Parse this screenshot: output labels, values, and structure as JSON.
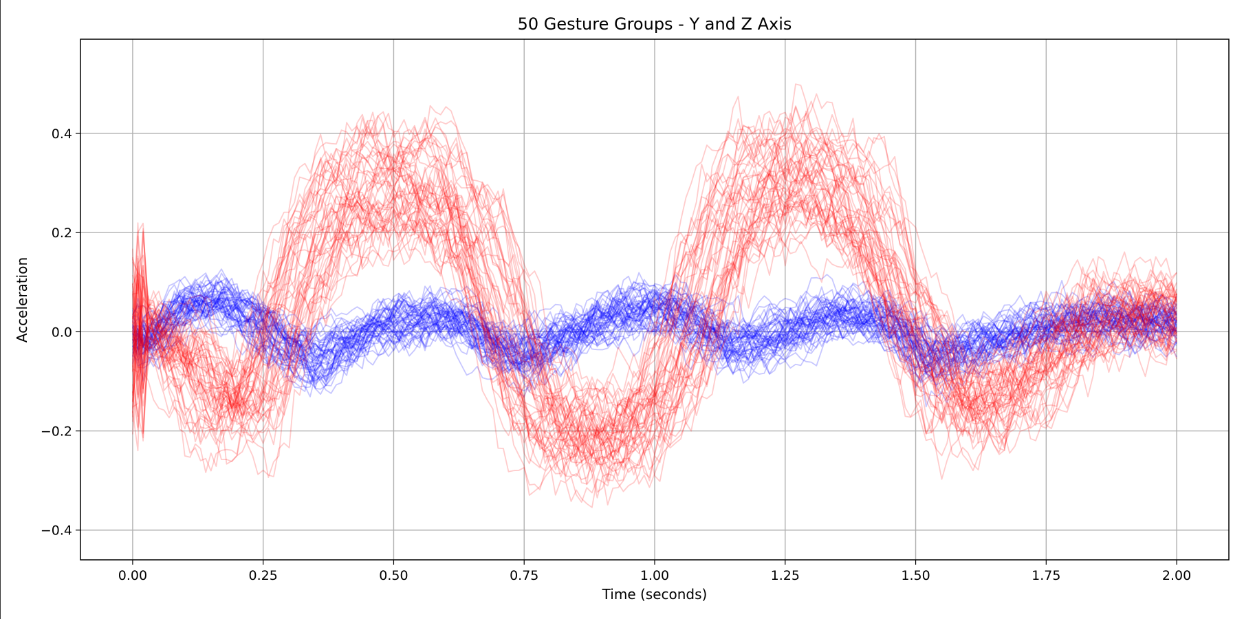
{
  "chart_data": {
    "type": "line",
    "title": "50 Gesture Groups - Y and Z Axis",
    "xlabel": "Time (seconds)",
    "ylabel": "Acceleration",
    "xlim": [
      -0.1,
      2.1
    ],
    "ylim": [
      -0.46,
      0.59
    ],
    "x_ticks": [
      0.0,
      0.25,
      0.5,
      0.75,
      1.0,
      1.25,
      1.5,
      1.75,
      2.0
    ],
    "x_tick_labels": [
      "0.00",
      "0.25",
      "0.50",
      "0.75",
      "1.00",
      "1.25",
      "1.50",
      "1.75",
      "2.00"
    ],
    "y_ticks": [
      -0.4,
      -0.2,
      0.0,
      0.2,
      0.4
    ],
    "y_tick_labels": [
      "−0.4",
      "−0.2",
      "0.0",
      "0.2",
      "0.4"
    ],
    "grid": true,
    "legend": null,
    "series_groups": [
      {
        "axis": "z",
        "color": "#ff0000",
        "count": 50,
        "approx_mean_profile": {
          "x": [
            0.0,
            0.03,
            0.08,
            0.15,
            0.2,
            0.25,
            0.3,
            0.35,
            0.42,
            0.5,
            0.57,
            0.65,
            0.7,
            0.75,
            0.8,
            0.88,
            0.95,
            1.0,
            1.05,
            1.1,
            1.15,
            1.2,
            1.27,
            1.35,
            1.42,
            1.48,
            1.55,
            1.62,
            1.7,
            1.78,
            1.85,
            1.92,
            2.0
          ],
          "y": [
            0.0,
            -0.03,
            0.0,
            -0.12,
            -0.15,
            -0.1,
            0.05,
            0.18,
            0.25,
            0.28,
            0.28,
            0.2,
            0.05,
            -0.1,
            -0.17,
            -0.2,
            -0.2,
            -0.15,
            -0.05,
            0.1,
            0.22,
            0.28,
            0.3,
            0.28,
            0.2,
            0.05,
            -0.1,
            -0.15,
            -0.1,
            -0.02,
            0.03,
            0.04,
            0.04
          ]
        }
      },
      {
        "axis": "y",
        "color": "#0000ff",
        "count": 50,
        "approx_mean_profile": {
          "x": [
            0.0,
            0.03,
            0.1,
            0.2,
            0.28,
            0.35,
            0.45,
            0.55,
            0.62,
            0.7,
            0.75,
            0.85,
            1.0,
            1.08,
            1.15,
            1.25,
            1.35,
            1.45,
            1.52,
            1.6,
            1.75,
            1.85,
            2.0
          ],
          "y": [
            0.0,
            -0.03,
            0.05,
            0.05,
            -0.02,
            -0.06,
            0.0,
            0.03,
            0.03,
            -0.03,
            -0.05,
            0.0,
            0.05,
            0.02,
            -0.03,
            0.0,
            0.03,
            0.02,
            -0.05,
            -0.03,
            0.01,
            0.02,
            0.02
          ]
        }
      }
    ]
  }
}
